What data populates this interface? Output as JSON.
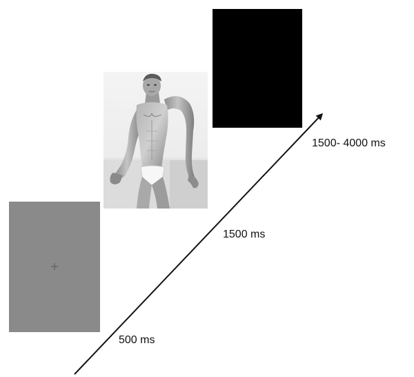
{
  "trial": {
    "frames": [
      {
        "id": "fixation",
        "fill": "#8a8a8a",
        "marker": "fixation-cross",
        "duration_label": "500 ms"
      },
      {
        "id": "stimulus",
        "fill": "#f2f2f2",
        "content": "grayscale photograph of a male model in white briefs",
        "duration_label": "1500 ms"
      },
      {
        "id": "blank",
        "fill": "#000000",
        "duration_label": "1500- 4000 ms"
      }
    ]
  },
  "colors": {
    "arrow": "#111111",
    "fixation_cross": "#555555"
  }
}
